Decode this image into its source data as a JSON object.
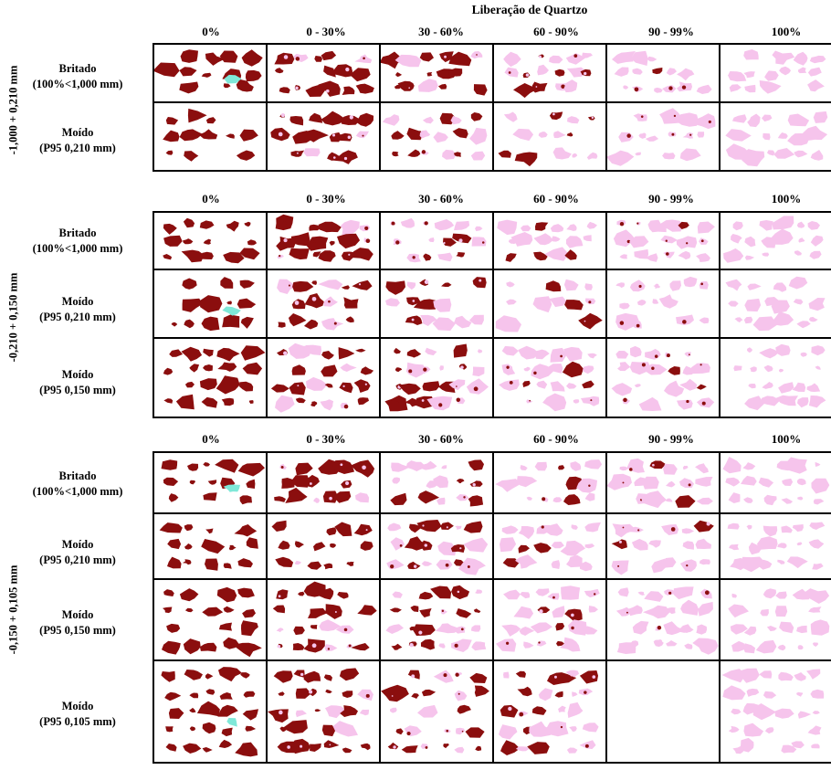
{
  "title": "Liberação de Quartzo",
  "columns": [
    "0%",
    "0 - 30%",
    "30 - 60%",
    "60 - 90%",
    "90 - 99%",
    "100%"
  ],
  "colors": {
    "mineral": "#8b0e0e",
    "quartz": "#f6c4ec",
    "inclusion": "#7fe8d8"
  },
  "sections": [
    {
      "size_label": "-1,000 + 0,210 mm",
      "rows": [
        {
          "line1": "Britado",
          "line2": "(100%<1,000 mm)"
        },
        {
          "line1": "Moído",
          "line2": "(P95  0,210 mm)"
        }
      ]
    },
    {
      "size_label": "-0,210 + 0,150 mm",
      "rows": [
        {
          "line1": "Britado",
          "line2": "(100%<1,000 mm)"
        },
        {
          "line1": "Moído",
          "line2": "(P95  0,210 mm)"
        },
        {
          "line1": "Moído",
          "line2": "(P95  0,150 mm)"
        }
      ]
    },
    {
      "size_label": "-0,150 + 0,105 mm",
      "rows": [
        {
          "line1": "Britado",
          "line2": "(100%<1,000 mm)"
        },
        {
          "line1": "Moído",
          "line2": "(P95  0,210 mm)"
        },
        {
          "line1": "Moído",
          "line2": "(P95  0,150 mm)"
        },
        {
          "line1": "Moído",
          "line2": "(P95  0,105 mm)"
        }
      ]
    }
  ]
}
